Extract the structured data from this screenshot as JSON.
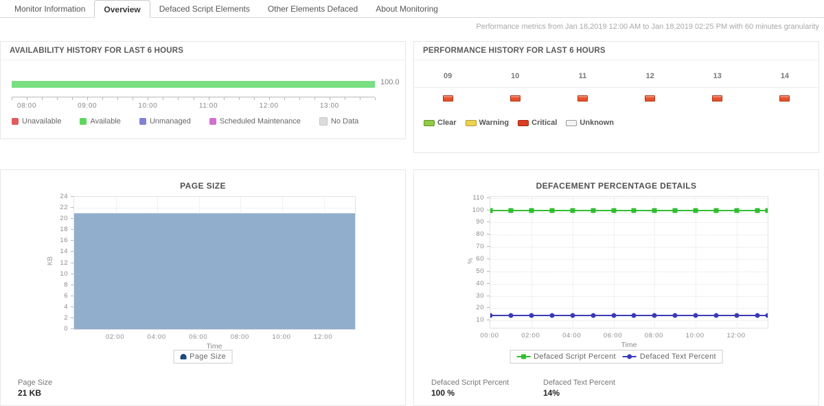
{
  "header": {
    "tabs": [
      {
        "label": "Monitor Information",
        "active": false
      },
      {
        "label": "Overview",
        "active": true
      },
      {
        "label": "Defaced Script Elements",
        "active": false
      },
      {
        "label": "Other Elements Defaced",
        "active": false
      },
      {
        "label": "About Monitoring",
        "active": false
      }
    ],
    "metrics_note": "Performance metrics from Jan 18,2019 12:00 AM to Jan 18,2019 02:25 PM with 60 minutes granularity"
  },
  "availability": {
    "title": "AVAILABILITY HISTORY FOR LAST 6 HOURS",
    "bar": {
      "value_label": "100.0",
      "color": "#79df82",
      "status": "Available"
    },
    "x_labels": [
      "08:00",
      "09:00",
      "10:00",
      "11:00",
      "12:00",
      "13:00"
    ],
    "legend": [
      {
        "label": "Unavailable",
        "color": "#e25c5c"
      },
      {
        "label": "Available",
        "color": "#5ed65e"
      },
      {
        "label": "Unmanaged",
        "color": "#8282d8"
      },
      {
        "label": "Scheduled Maintenance",
        "color": "#d36fd3"
      },
      {
        "label": "No Data",
        "color": "#dcdcdc",
        "border": "#c4c4c4"
      }
    ]
  },
  "performance": {
    "title": "PERFORMANCE HISTORY FOR LAST 6 HOURS",
    "hours": [
      "09",
      "10",
      "11",
      "12",
      "13",
      "14"
    ],
    "hour_status": [
      "critical",
      "critical",
      "critical",
      "critical",
      "critical",
      "critical"
    ],
    "status_colors": {
      "critical_fill": "#e8512c",
      "critical_border": "#a93517"
    },
    "legend": [
      {
        "label": "Clear",
        "fill": "#93c947",
        "border": "#5d8f23"
      },
      {
        "label": "Warning",
        "fill": "#ecd24e",
        "border": "#b1992e"
      },
      {
        "label": "Critical",
        "fill": "#de3c20",
        "border": "#9c2a12"
      },
      {
        "label": "Unknown",
        "fill": "#f5f5f5",
        "border": "#9a9a9a"
      }
    ]
  },
  "chart_data": [
    {
      "type": "area",
      "title": "PAGE SIZE",
      "xlabel": "Time",
      "ylabel": "KB",
      "ylim": [
        0,
        24
      ],
      "ystep": 2,
      "x_max_hours": 13.5,
      "x_ticks": [
        {
          "hour": 2,
          "label": "02:00"
        },
        {
          "hour": 4,
          "label": "04:00"
        },
        {
          "hour": 6,
          "label": "06:00"
        },
        {
          "hour": 8,
          "label": "08:00"
        },
        {
          "hour": 10,
          "label": "10:00"
        },
        {
          "hour": 12,
          "label": "12:00"
        }
      ],
      "series": [
        {
          "name": "Page Size",
          "value": 21,
          "color": "#92aecd",
          "legend_icon_color": "#1d4b7d"
        }
      ],
      "legend_position": "bottom",
      "grid": true
    },
    {
      "type": "line",
      "title": "DEFACEMENT PERCENTAGE DETAILS",
      "xlabel": "Time",
      "ylabel": "%",
      "ylim": [
        4,
        111
      ],
      "ytick_range": [
        10,
        110
      ],
      "ystep": 10,
      "x_max_hours": 13.5,
      "x_ticks": [
        {
          "hour": 0,
          "label": "00:00"
        },
        {
          "hour": 2,
          "label": "02:00"
        },
        {
          "hour": 4,
          "label": "04:00"
        },
        {
          "hour": 6,
          "label": "06:00"
        },
        {
          "hour": 8,
          "label": "08:00"
        },
        {
          "hour": 10,
          "label": "10:00"
        },
        {
          "hour": 12,
          "label": "12:00"
        }
      ],
      "point_hours": [
        0,
        1,
        2,
        3,
        4,
        5,
        6,
        7,
        8,
        9,
        10,
        11,
        12,
        13,
        13.5
      ],
      "series": [
        {
          "name": "Defaced Script Percent",
          "value": 100,
          "color": "#2fbe2f",
          "marker": "square"
        },
        {
          "name": "Defaced Text Percent",
          "value": 14,
          "color": "#3a3ab8",
          "marker": "circle"
        }
      ],
      "legend_position": "bottom",
      "grid": true
    }
  ],
  "stats": {
    "page_size": {
      "label": "Page Size",
      "value": "21 KB"
    },
    "defaced_script": {
      "label": "Defaced Script Percent",
      "value": "100 %"
    },
    "defaced_text": {
      "label": "Defaced Text Percent",
      "value": "14%"
    }
  }
}
